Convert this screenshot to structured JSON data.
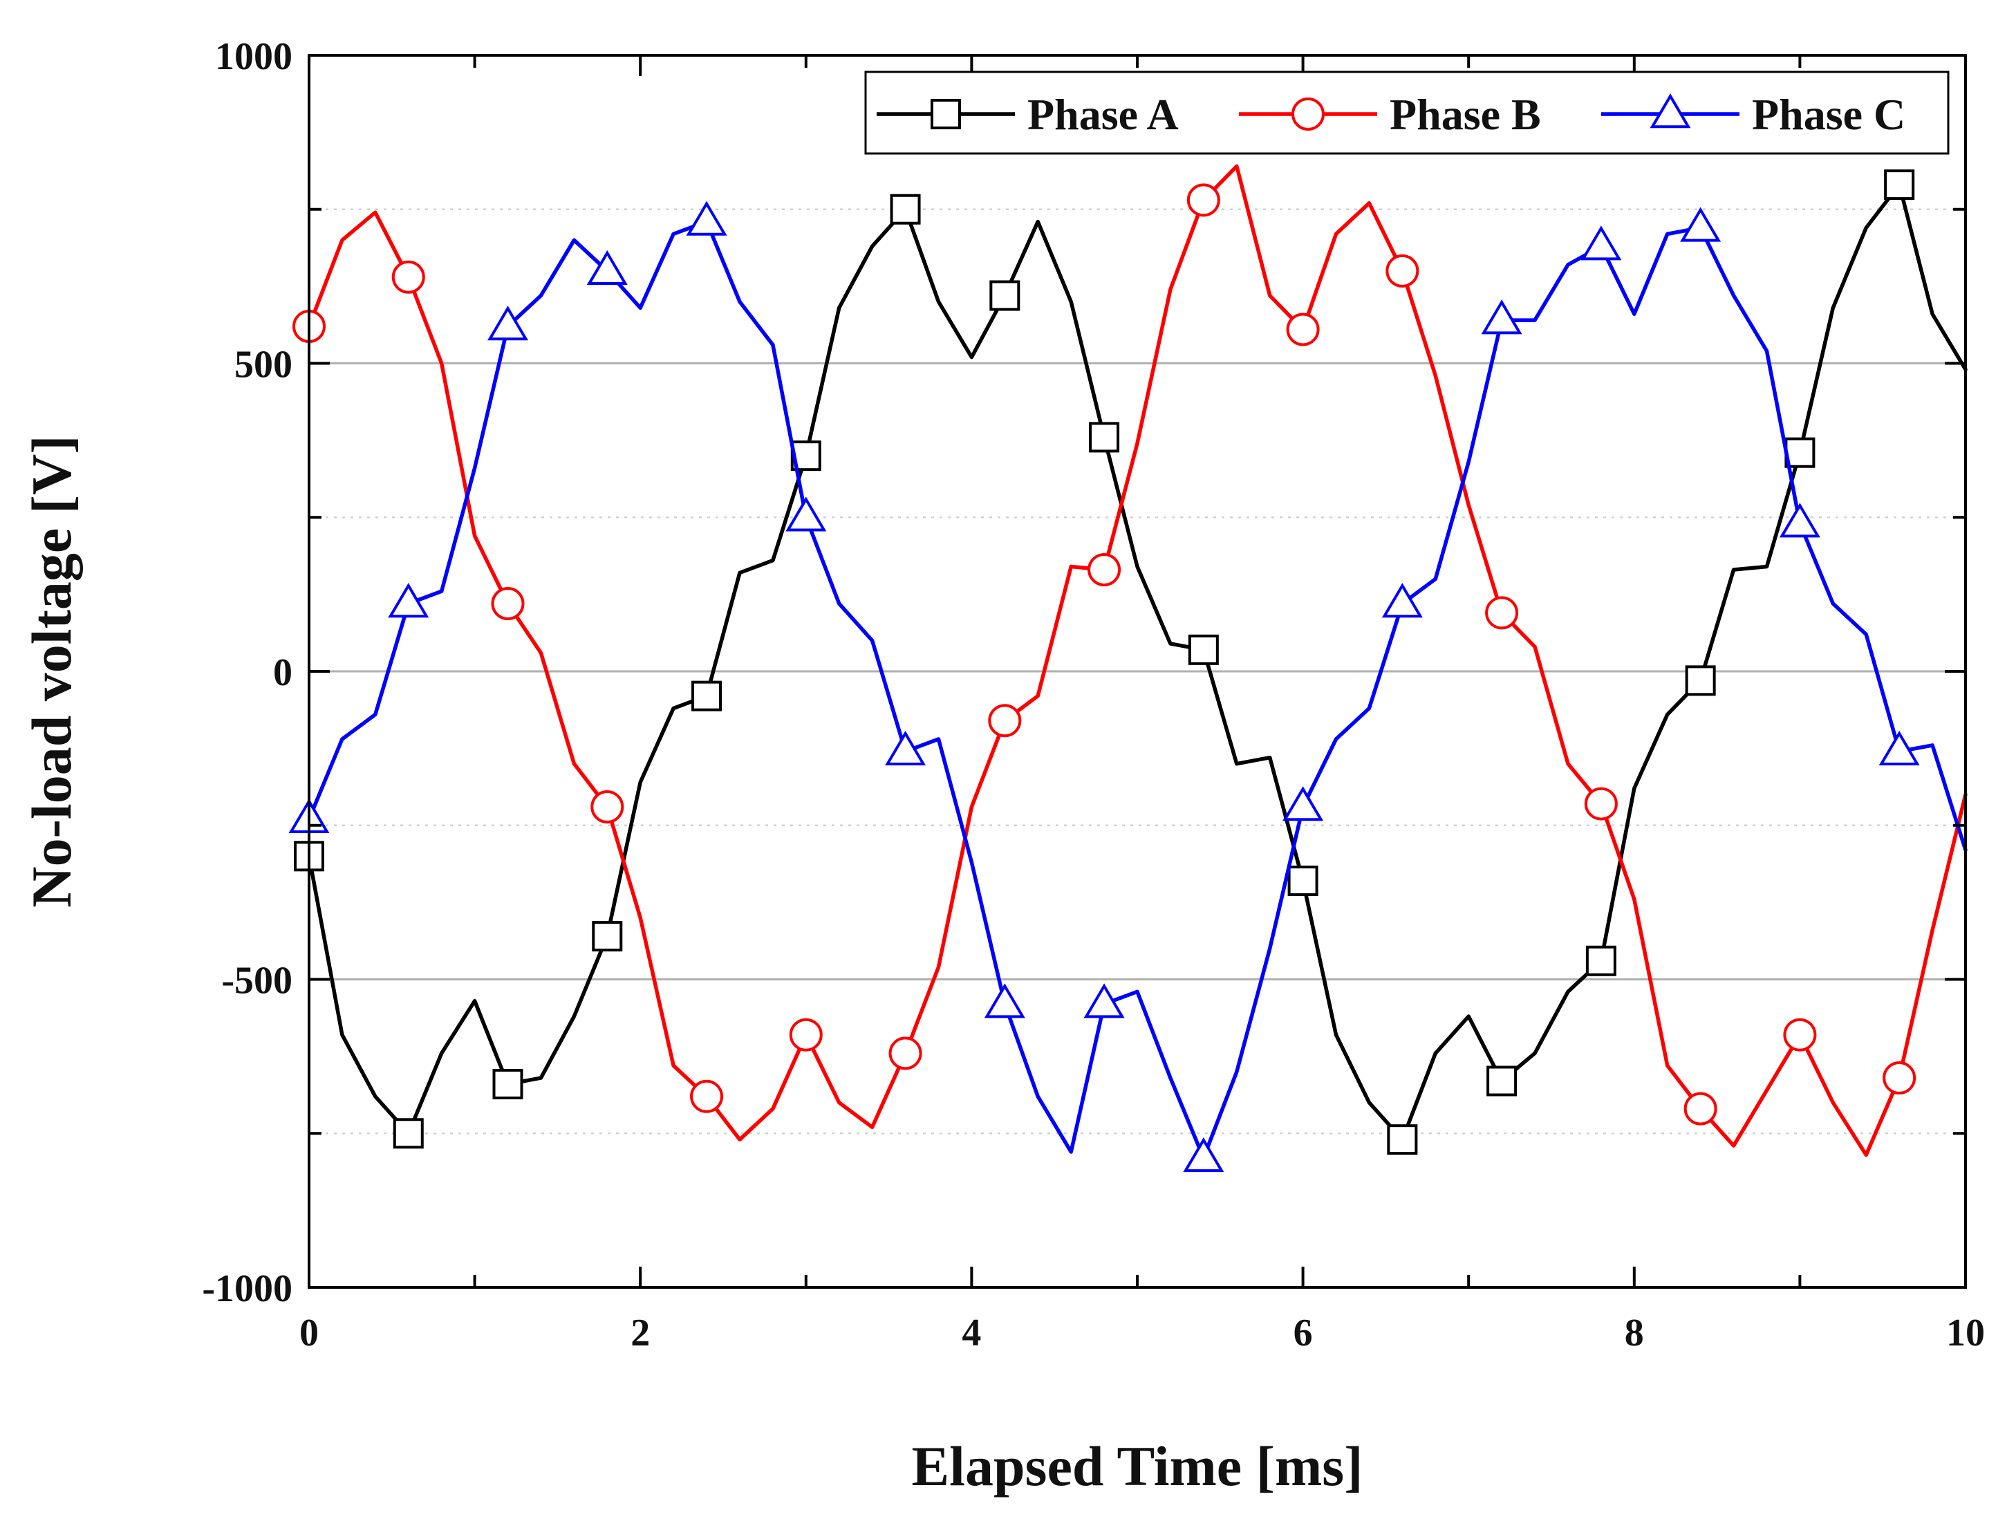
{
  "chart_data": {
    "type": "line",
    "xlabel": "Elapsed Time [ms]",
    "ylabel": "No-load voltage [V]",
    "xlim": [
      0,
      10
    ],
    "ylim": [
      -1000,
      1000
    ],
    "xticks": [
      0,
      2,
      4,
      6,
      8,
      10
    ],
    "yticks": [
      -1000,
      -500,
      0,
      500,
      1000
    ],
    "legend_position": "top-right",
    "grid": "horizontal",
    "series": [
      {
        "name": "Phase A",
        "color": "#000000",
        "marker": "square",
        "x": [
          0,
          0.2,
          0.4,
          0.6,
          0.8,
          1.0,
          1.2,
          1.4,
          1.6,
          1.8,
          2.0,
          2.2,
          2.4,
          2.6,
          2.8,
          3.0,
          3.2,
          3.4,
          3.6,
          3.8,
          4.0,
          4.2,
          4.4,
          4.6,
          4.8,
          5.0,
          5.2,
          5.4,
          5.6,
          5.8,
          6.0,
          6.2,
          6.4,
          6.6,
          6.8,
          7.0,
          7.2,
          7.4,
          7.6,
          7.8,
          8.0,
          8.2,
          8.4,
          8.6,
          8.8,
          9.0,
          9.2,
          9.4,
          9.6,
          9.8,
          10.0
        ],
        "y": [
          -300,
          -590,
          -690,
          -750,
          -620,
          -535,
          -670,
          -660,
          -560,
          -430,
          -180,
          -60,
          -40,
          160,
          180,
          350,
          590,
          690,
          750,
          600,
          510,
          610,
          730,
          600,
          380,
          170,
          45,
          35,
          -150,
          -140,
          -340,
          -590,
          -700,
          -760,
          -620,
          -560,
          -665,
          -620,
          -520,
          -470,
          -190,
          -70,
          -15,
          165,
          170,
          355,
          590,
          720,
          790,
          580,
          490
        ]
      },
      {
        "name": "Phase B",
        "color": "#ff0000",
        "marker": "circle",
        "x": [
          0,
          0.2,
          0.4,
          0.6,
          0.8,
          1.0,
          1.2,
          1.4,
          1.6,
          1.8,
          2.0,
          2.2,
          2.4,
          2.6,
          2.8,
          3.0,
          3.2,
          3.4,
          3.6,
          3.8,
          4.0,
          4.2,
          4.4,
          4.6,
          4.8,
          5.0,
          5.2,
          5.4,
          5.6,
          5.8,
          6.0,
          6.2,
          6.4,
          6.6,
          6.8,
          7.0,
          7.2,
          7.4,
          7.6,
          7.8,
          8.0,
          8.2,
          8.4,
          8.6,
          8.8,
          9.0,
          9.2,
          9.4,
          9.6,
          9.8,
          10.0
        ],
        "y": [
          560,
          700,
          745,
          640,
          500,
          220,
          110,
          30,
          -150,
          -220,
          -400,
          -640,
          -690,
          -760,
          -710,
          -590,
          -700,
          -740,
          -620,
          -480,
          -220,
          -80,
          -40,
          170,
          165,
          370,
          620,
          765,
          820,
          610,
          555,
          710,
          760,
          650,
          480,
          270,
          95,
          40,
          -150,
          -215,
          -370,
          -640,
          -710,
          -770,
          -680,
          -590,
          -700,
          -785,
          -660,
          -420,
          -200
        ]
      },
      {
        "name": "Phase C",
        "color": "#0000ff",
        "marker": "triangle",
        "x": [
          0,
          0.2,
          0.4,
          0.6,
          0.8,
          1.0,
          1.2,
          1.4,
          1.6,
          1.8,
          2.0,
          2.2,
          2.4,
          2.6,
          2.8,
          3.0,
          3.2,
          3.4,
          3.6,
          3.8,
          4.0,
          4.2,
          4.4,
          4.6,
          4.8,
          5.0,
          5.2,
          5.4,
          5.6,
          5.8,
          6.0,
          6.2,
          6.4,
          6.6,
          6.8,
          7.0,
          7.2,
          7.4,
          7.6,
          7.8,
          8.0,
          8.2,
          8.4,
          8.6,
          8.8,
          9.0,
          9.2,
          9.4,
          9.6,
          9.8,
          10.0
        ],
        "y": [
          -240,
          -110,
          -70,
          110,
          130,
          330,
          560,
          610,
          700,
          650,
          590,
          710,
          730,
          600,
          530,
          250,
          110,
          50,
          -130,
          -110,
          -310,
          -540,
          -690,
          -780,
          -540,
          -520,
          -660,
          -790,
          -650,
          -450,
          -220,
          -110,
          -60,
          110,
          150,
          340,
          570,
          570,
          660,
          690,
          580,
          710,
          720,
          610,
          520,
          240,
          110,
          60,
          -130,
          -120,
          -290
        ]
      }
    ]
  }
}
